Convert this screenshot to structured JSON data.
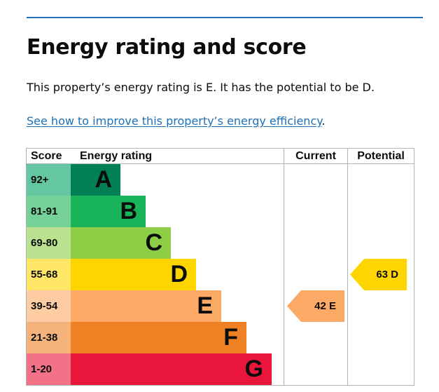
{
  "page": {
    "title": "Energy rating and score",
    "summary": "This property’s energy rating is E. It has the potential to be D.",
    "link_text": "See how to improve this property’s energy efficiency",
    "link_suffix": "."
  },
  "chart": {
    "headers": {
      "score": "Score",
      "rating": "Energy rating",
      "current": "Current",
      "potential": "Potential"
    },
    "bands": [
      {
        "score": "92+",
        "letter": "A",
        "color": "#008054",
        "score_bg": "#64c7a1"
      },
      {
        "score": "81-91",
        "letter": "B",
        "color": "#19b459",
        "score_bg": "#75d198"
      },
      {
        "score": "69-80",
        "letter": "C",
        "color": "#8dce46",
        "score_bg": "#bbe290"
      },
      {
        "score": "55-68",
        "letter": "D",
        "color": "#ffd500",
        "score_bg": "#ffe666"
      },
      {
        "score": "39-54",
        "letter": "E",
        "color": "#fcaa65",
        "score_bg": "#fdcca3"
      },
      {
        "score": "21-38",
        "letter": "F",
        "color": "#ef8023",
        "score_bg": "#f5b37c"
      },
      {
        "score": "1-20",
        "letter": "G",
        "color": "#e9153b",
        "score_bg": "#f27388"
      }
    ],
    "current": {
      "label": "42 E",
      "band": "E",
      "color": "#fcaa65"
    },
    "potential": {
      "label": "63 D",
      "band": "D",
      "color": "#ffd500"
    }
  }
}
